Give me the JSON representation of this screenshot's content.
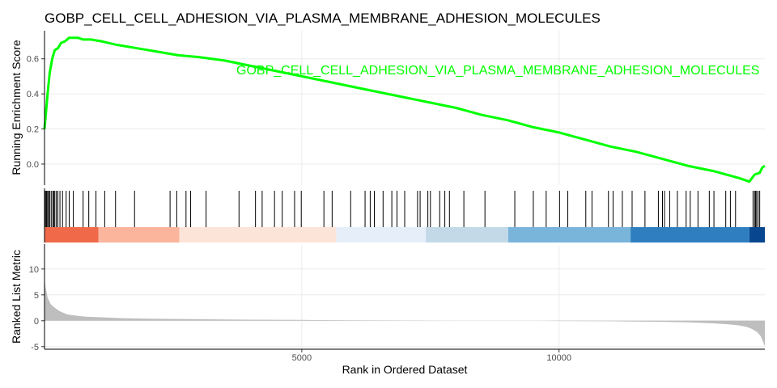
{
  "chart_data": {
    "type": "line",
    "title": "GOBP_CELL_CELL_ADHESION_VIA_PLASMA_MEMBRANE_ADHESION_MOLECULES",
    "xlabel": "Rank in Ordered Dataset",
    "xlim": [
      0,
      14000
    ],
    "x_ticks": [
      5000,
      10000
    ],
    "colors": {
      "running_score": "#00ff00",
      "hits": "#000000",
      "ranked_metric": "#bebebe",
      "grid": "#ebebeb"
    },
    "running_score_panel": {
      "ylabel": "Running Enrichment Score",
      "ylim": [
        -0.12,
        0.76
      ],
      "y_ticks": [
        0.0,
        0.2,
        0.4,
        0.6
      ],
      "series": [
        {
          "name": "GOBP_CELL_CELL_ADHESION_VIA_PLASMA_MEMBRANE_ADHESION_MOLECULES",
          "x": [
            0,
            30,
            60,
            100,
            150,
            200,
            260,
            320,
            400,
            480,
            560,
            650,
            750,
            900,
            1100,
            1400,
            1800,
            2200,
            2600,
            3000,
            3500,
            4000,
            4500,
            5000,
            5500,
            6000,
            6500,
            7000,
            7500,
            8000,
            8500,
            9000,
            9500,
            10000,
            10500,
            11000,
            11500,
            12000,
            12500,
            13000,
            13500,
            13700,
            13800,
            13900,
            13950,
            14000
          ],
          "y": [
            0.2,
            0.3,
            0.4,
            0.52,
            0.6,
            0.65,
            0.66,
            0.69,
            0.7,
            0.72,
            0.72,
            0.72,
            0.71,
            0.71,
            0.7,
            0.68,
            0.66,
            0.64,
            0.62,
            0.61,
            0.59,
            0.56,
            0.53,
            0.5,
            0.47,
            0.44,
            0.41,
            0.38,
            0.35,
            0.32,
            0.28,
            0.25,
            0.21,
            0.18,
            0.14,
            0.1,
            0.07,
            0.03,
            -0.01,
            -0.04,
            -0.08,
            -0.1,
            -0.06,
            -0.05,
            -0.02,
            -0.01
          ]
        }
      ]
    },
    "hits_panel": {
      "hit_ranks": [
        10,
        20,
        40,
        60,
        80,
        100,
        130,
        160,
        180,
        200,
        230,
        260,
        300,
        350,
        420,
        480,
        560,
        750,
        860,
        1000,
        1170,
        1380,
        1750,
        2440,
        2570,
        2750,
        2840,
        3140,
        3780,
        4100,
        4230,
        4470,
        4620,
        4860,
        4990,
        5430,
        5590,
        5950,
        6230,
        6330,
        6410,
        6580,
        6750,
        6850,
        7000,
        7250,
        7300,
        7450,
        7500,
        7680,
        7780,
        7870,
        8150,
        8560,
        9140,
        9500,
        9750,
        10010,
        10170,
        10520,
        10640,
        10960,
        11050,
        11230,
        11420,
        11670,
        11930,
        12010,
        12050,
        12150,
        12300,
        12470,
        12550,
        12700,
        12920,
        13010,
        13240,
        13330,
        13430,
        13770,
        13800,
        13820,
        13840,
        13870,
        13900
      ],
      "color_bands": [
        {
          "from": 0,
          "to": 1050,
          "color": "#f06a4a"
        },
        {
          "from": 1050,
          "to": 2620,
          "color": "#fcb59d"
        },
        {
          "from": 2620,
          "to": 5670,
          "color": "#fde4d8"
        },
        {
          "from": 5670,
          "to": 7410,
          "color": "#e6eef9"
        },
        {
          "from": 7410,
          "to": 9010,
          "color": "#c3d9e8"
        },
        {
          "from": 9010,
          "to": 11390,
          "color": "#79b4da"
        },
        {
          "from": 11390,
          "to": 13700,
          "color": "#2f7fc0"
        },
        {
          "from": 13700,
          "to": 14000,
          "color": "#08468f"
        }
      ]
    },
    "ranked_metric_panel": {
      "ylabel": "Ranked List Metric",
      "ylim": [
        -5.5,
        14.5
      ],
      "y_ticks": [
        -5,
        0,
        5,
        10
      ],
      "series": [
        {
          "x": [
            0,
            20,
            60,
            120,
            200,
            300,
            450,
            600,
            800,
            1000,
            1500,
            2000,
            3000,
            4000,
            5000,
            6000,
            7000,
            8000,
            8990,
            9630,
            10000,
            11000,
            12000,
            12500,
            13000,
            13300,
            13500,
            13650,
            13750,
            13850,
            13920,
            14000
          ],
          "y": [
            8.0,
            6.5,
            4.5,
            3.2,
            2.5,
            1.8,
            1.2,
            1.0,
            0.8,
            0.7,
            0.5,
            0.4,
            0.3,
            0.2,
            0.15,
            0.1,
            0.05,
            0.02,
            0.0,
            0.0,
            -0.05,
            -0.1,
            -0.2,
            -0.3,
            -0.5,
            -0.7,
            -0.9,
            -1.2,
            -1.6,
            -2.2,
            -3.0,
            -4.9
          ]
        }
      ]
    }
  }
}
